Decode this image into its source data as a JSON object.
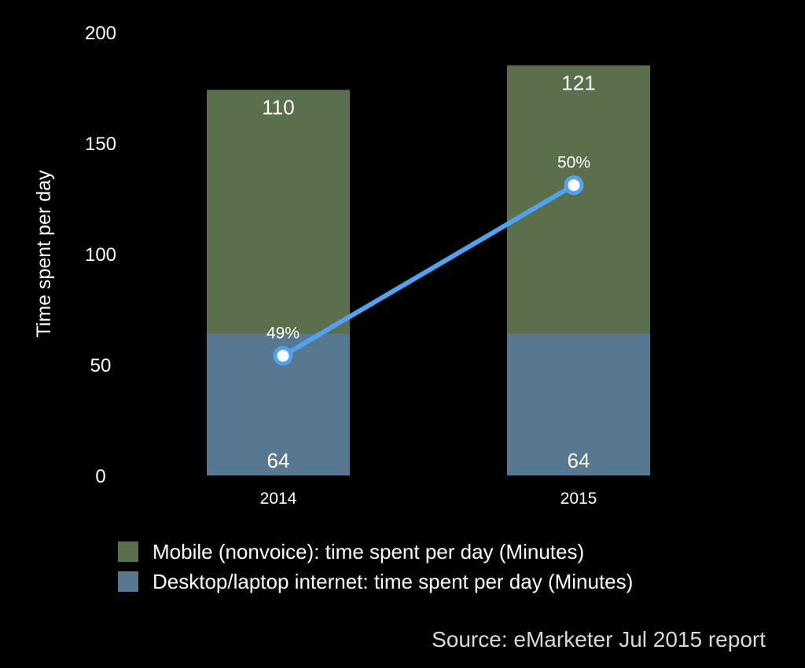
{
  "chart_data": {
    "type": "bar",
    "stacked": true,
    "categories": [
      "2014",
      "2015"
    ],
    "series": [
      {
        "name": "Desktop/laptop internet: time spent per day (Minutes)",
        "values": [
          64,
          64
        ],
        "color": "#587892"
      },
      {
        "name": "Mobile (nonvoice): time spent per day (Minutes)",
        "values": [
          110,
          121
        ],
        "color": "#5b6f4c"
      }
    ],
    "line": {
      "values": [
        49,
        50
      ],
      "labels": [
        "49%",
        "50%"
      ],
      "y_values_on_bar_axis": [
        54,
        131
      ],
      "color": "#4fa3f2"
    },
    "ylabel": "Time spent per day",
    "ylim": [
      0,
      200
    ],
    "yticks": [
      0,
      50,
      100,
      150,
      200
    ],
    "grid": false,
    "legend_position": "bottom-left"
  },
  "legend": [
    {
      "label": "Mobile (nonvoice): time spent per day (Minutes)",
      "color": "#5b6f4c"
    },
    {
      "label": "Desktop/laptop internet: time spent per day (Minutes)",
      "color": "#587892"
    }
  ],
  "source": "Source: eMarketer Jul 2015 report"
}
